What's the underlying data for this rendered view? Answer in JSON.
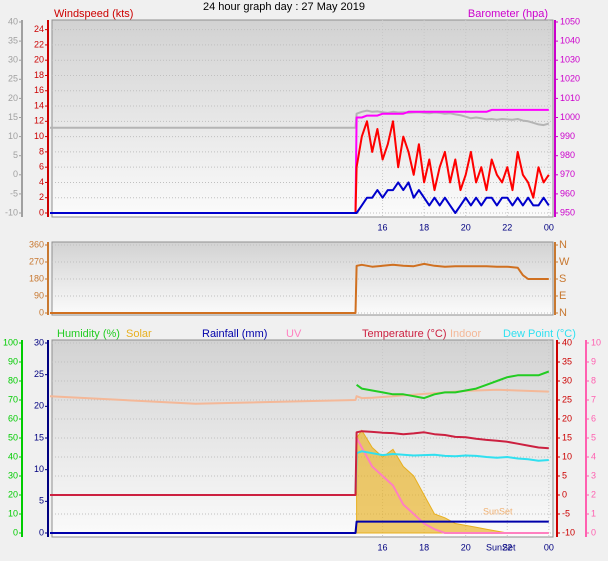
{
  "title": "24 hour graph day : 27 May 2019",
  "chart_data": [
    {
      "type": "line",
      "ylabel": "Windspeed (kts)",
      "y2label": "Barometer (hpa)",
      "xlim": [
        0,
        24.2
      ],
      "xticks": [
        16,
        18,
        20,
        22,
        {
          "value": 24,
          "label": "00"
        }
      ],
      "ylim": [
        0,
        25
      ],
      "yticks": [
        0,
        2,
        4,
        6,
        8,
        10,
        12,
        14,
        16,
        18,
        20,
        22,
        24
      ],
      "y2lim": [
        950,
        1050
      ],
      "y2ticks": [
        950,
        960,
        970,
        980,
        990,
        1000,
        1010,
        1020,
        1030,
        1040,
        1050
      ],
      "y3lim": [
        -10,
        40
      ],
      "y3ticks": [
        -10,
        -5,
        0,
        5,
        10,
        15,
        20,
        25,
        30,
        35,
        40
      ],
      "axis_colors": {
        "y": "#cc0000",
        "y2": "#cc00cc",
        "y3": "#a0a0a0"
      },
      "grid": true,
      "x": [
        0,
        14.7,
        14.75,
        15,
        15.25,
        15.5,
        15.75,
        16,
        16.25,
        16.5,
        16.75,
        17,
        17.25,
        17.5,
        17.75,
        18,
        18.25,
        18.5,
        18.75,
        19,
        19.25,
        19.5,
        19.75,
        20,
        20.25,
        20.5,
        20.75,
        21,
        21.25,
        21.5,
        21.75,
        22,
        22.25,
        22.5,
        22.75,
        23,
        23.25,
        23.5,
        23.75,
        24
      ],
      "series": [
        {
          "color": "#b4b4b4",
          "axis": "y3",
          "values": [
            12.3,
            12.3,
            16,
            16.5,
            16.8,
            16.5,
            16.6,
            16.4,
            16.2,
            16.5,
            16.3,
            16.4,
            16.2,
            16.3,
            16.4,
            16.2,
            16.1,
            16.3,
            16.2,
            16.0,
            16.1,
            15.8,
            15.6,
            15.2,
            14.8,
            15.0,
            14.8,
            14.5,
            14.6,
            14.4,
            14.6,
            14.5,
            14.4,
            14.6,
            14.2,
            14.0,
            13.6,
            13.2,
            13.0,
            13.4
          ]
        },
        {
          "color": "#ff00ff",
          "axis": "y2",
          "values": [
            950,
            950,
            1000,
            1000,
            1001,
            1001,
            1001,
            1002,
            1002,
            1002,
            1002,
            1002,
            1003,
            1003,
            1003,
            1003,
            1003,
            1003,
            1003,
            1003,
            1003,
            1003,
            1003,
            1003,
            1003,
            1003,
            1003,
            1003,
            1004,
            1004,
            1004,
            1004,
            1004,
            1004,
            1004,
            1004,
            1004,
            1004,
            1004,
            1004
          ]
        },
        {
          "color": "#ff0000",
          "axis": "y",
          "values": [
            0,
            0,
            6,
            10,
            12,
            8,
            11,
            7,
            9,
            12,
            6,
            10,
            8,
            5,
            9,
            4,
            7,
            3,
            6,
            8,
            4,
            7,
            3,
            5,
            8,
            4,
            6,
            3,
            7,
            5,
            4,
            6,
            3,
            8,
            5,
            4,
            2,
            6,
            4,
            5
          ]
        },
        {
          "color": "#0000cc",
          "axis": "y",
          "values": [
            0,
            0,
            0,
            1,
            2,
            2,
            3,
            2,
            3,
            3,
            4,
            3,
            4,
            2,
            3,
            2,
            1,
            2,
            1,
            2,
            1,
            0,
            1,
            2,
            1,
            2,
            1,
            2,
            2,
            1,
            2,
            2,
            1,
            2,
            1,
            2,
            1,
            1,
            2,
            1
          ]
        }
      ]
    },
    {
      "type": "line",
      "xlim": [
        0,
        24.2
      ],
      "ylim": [
        0,
        360
      ],
      "yticks": [
        0,
        90,
        180,
        270,
        360
      ],
      "y2lim": [
        0,
        360
      ],
      "y2ticks": [
        {
          "value": 0,
          "label": "N"
        },
        {
          "value": 90,
          "label": "E"
        },
        {
          "value": 180,
          "label": "S"
        },
        {
          "value": 270,
          "label": "W"
        },
        {
          "value": 360,
          "label": "N"
        }
      ],
      "axis_colors": {
        "y": "#c87830",
        "y2": "#c87830"
      },
      "grid": true,
      "x": [
        0,
        14.7,
        14.75,
        15,
        15.5,
        16,
        16.5,
        17,
        17.5,
        18,
        18.5,
        19,
        19.5,
        20,
        20.5,
        21,
        21.5,
        22,
        22.5,
        22.75,
        23,
        23.5,
        24
      ],
      "series": [
        {
          "color": "#d07020",
          "axis": "y",
          "values": [
            0,
            0,
            250,
            255,
            245,
            250,
            255,
            250,
            248,
            260,
            250,
            245,
            248,
            248,
            248,
            248,
            245,
            245,
            240,
            200,
            180,
            180,
            180
          ]
        }
      ]
    },
    {
      "type": "line",
      "xlim": [
        0,
        24.2
      ],
      "xticks": [
        16,
        18,
        20,
        22,
        {
          "value": 24,
          "label": "00"
        }
      ],
      "ylim": [
        0,
        100
      ],
      "yticks": [
        0,
        10,
        20,
        30,
        40,
        50,
        60,
        70,
        80,
        90,
        100
      ],
      "y2lim": [
        -10,
        40
      ],
      "y2ticks": [
        -10,
        -5,
        0,
        5,
        10,
        15,
        20,
        25,
        30,
        35,
        40
      ],
      "y3lim": [
        0,
        30
      ],
      "y3ticks": [
        0,
        5,
        10,
        15,
        20,
        25,
        30
      ],
      "y4lim": [
        0,
        10
      ],
      "y4ticks": [
        0,
        1,
        2,
        3,
        4,
        5,
        6,
        7,
        8,
        9,
        10
      ],
      "axis_colors": {
        "y": "#00cc00",
        "y2": "#cc0000",
        "y3": "#000080",
        "y4": "#ff60b0"
      },
      "grid": true,
      "annotations": [
        "SunSet",
        "SunSet"
      ],
      "x": [
        0,
        7,
        14.7,
        14.75,
        15,
        15.5,
        16,
        16.5,
        17,
        17.5,
        18,
        18.5,
        19,
        19.5,
        20,
        20.5,
        21,
        21.5,
        22,
        22.5,
        23,
        23.5,
        24
      ],
      "series": [
        {
          "name": "Solar",
          "color": "#e8b020",
          "axis": "y",
          "fill": true,
          "values": [
            null,
            null,
            null,
            50,
            54,
            45,
            40,
            44,
            35,
            30,
            20,
            10,
            8,
            5,
            4,
            3,
            2,
            1,
            0,
            0,
            0,
            0,
            0
          ]
        },
        {
          "name": "Indoor",
          "color": "#f4b898",
          "axis": "y2",
          "values": [
            26,
            24,
            25,
            26,
            25.5,
            25.6,
            25.8,
            26,
            26.2,
            26.4,
            26.6,
            26.8,
            27,
            27.2,
            27.4,
            27.5,
            27.6,
            27.7,
            27.6,
            27.5,
            27.4,
            27.3,
            27.2
          ]
        },
        {
          "name": "UV",
          "color": "#ff80c0",
          "axis": "y4",
          "values": [
            null,
            null,
            null,
            5,
            4.5,
            3.5,
            3,
            2.5,
            1.5,
            1,
            0.5,
            0.2,
            0,
            0,
            0,
            0,
            0,
            0,
            0,
            0,
            0,
            0,
            0
          ]
        },
        {
          "name": "Rainfall (mm)",
          "color": "#0000aa",
          "axis": "y3",
          "values": [
            0,
            0,
            0,
            1.8,
            1.8,
            1.8,
            1.8,
            1.8,
            1.8,
            1.8,
            1.8,
            1.8,
            1.8,
            1.8,
            1.8,
            1.8,
            1.8,
            1.8,
            1.8,
            1.8,
            1.8,
            1.8,
            1.8
          ]
        },
        {
          "name": "Dew Point (°C)",
          "color": "#30e0f0",
          "axis": "y2",
          "values": [
            0,
            0,
            0,
            11,
            11.5,
            11,
            10.5,
            10.8,
            10.6,
            10.4,
            10.5,
            10.6,
            10.3,
            10.2,
            10.4,
            10.3,
            10.0,
            9.8,
            10.0,
            9.6,
            9.4,
            9.0,
            9.2
          ]
        },
        {
          "name": "Temperature (°C)",
          "color": "#cc2040",
          "axis": "y2",
          "values": [
            0,
            0,
            0,
            16.5,
            16.8,
            16.6,
            16.4,
            16.3,
            16.0,
            16.2,
            16.5,
            16.0,
            15.8,
            15.3,
            15.2,
            14.8,
            14.5,
            14.3,
            14.0,
            13.5,
            13.0,
            12.5,
            12.3
          ]
        },
        {
          "name": "Humidity (%)",
          "color": "#22cc22",
          "axis": "y",
          "values": [
            null,
            null,
            null,
            78,
            76,
            75,
            74,
            73,
            73,
            72,
            71,
            73,
            74,
            74,
            75,
            76,
            78,
            80,
            82,
            83,
            83,
            83,
            85
          ]
        }
      ]
    }
  ]
}
